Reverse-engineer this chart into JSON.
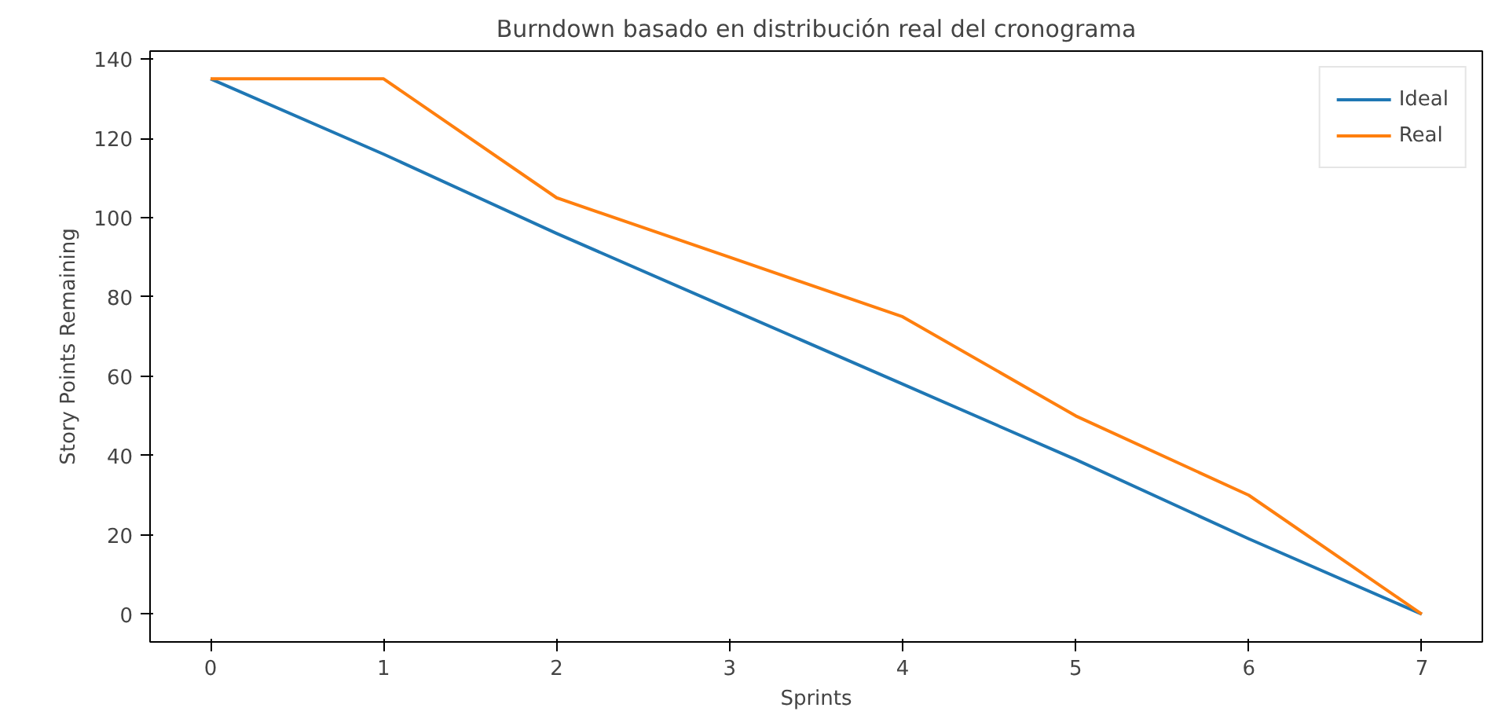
{
  "chart_data": {
    "type": "line",
    "title": "Burndown basado en distribución real del cronograma",
    "xlabel": "Sprints",
    "ylabel": "Story Points Remaining",
    "x": [
      0,
      1,
      2,
      3,
      4,
      5,
      6,
      7
    ],
    "series": [
      {
        "name": "Ideal",
        "color": "#1f77b4",
        "values": [
          135,
          116,
          96,
          77,
          58,
          39,
          19,
          0
        ]
      },
      {
        "name": "Real",
        "color": "#ff7f0e",
        "values": [
          135,
          135,
          105,
          90,
          75,
          50,
          30,
          0
        ]
      }
    ],
    "xlim": [
      -0.35,
      7.35
    ],
    "ylim": [
      -7,
      142
    ],
    "xticks": [
      0,
      1,
      2,
      3,
      4,
      5,
      6,
      7
    ],
    "yticks": [
      0,
      20,
      40,
      60,
      80,
      100,
      120,
      140
    ],
    "grid": false,
    "legend": "top right",
    "line_style": "solid"
  }
}
